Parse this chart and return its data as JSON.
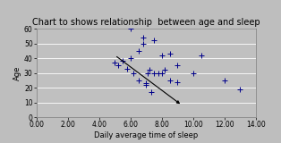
{
  "title": "Chart to shows relationship  between age and sleep",
  "xlabel": "Daily average time of sleep",
  "ylabel": "Age",
  "xlim": [
    0,
    14
  ],
  "ylim": [
    0,
    60
  ],
  "xticks": [
    0,
    2,
    4,
    6,
    8,
    10,
    12,
    14
  ],
  "xtick_labels": [
    "0.00",
    "2.00",
    "4.00",
    "6.00",
    "8.00",
    "10.00",
    "12.00",
    "14.00"
  ],
  "yticks": [
    0,
    10,
    20,
    30,
    40,
    50,
    60
  ],
  "scatter_x": [
    5.0,
    5.2,
    5.5,
    5.8,
    6.0,
    6.0,
    6.2,
    6.5,
    6.8,
    7.0,
    7.0,
    7.1,
    7.2,
    7.3,
    7.5,
    7.8,
    8.0,
    8.0,
    8.2,
    8.5,
    9.0,
    10.0,
    12.0,
    13.0
  ],
  "scatter_y": [
    37,
    35,
    38,
    33,
    40,
    60,
    30,
    25,
    50,
    22,
    23,
    30,
    32,
    17,
    30,
    30,
    42,
    30,
    32,
    25,
    24,
    30,
    25,
    19
  ],
  "extra_scatter_x": [
    6.5,
    6.8,
    7.5,
    8.5,
    9.0,
    10.5
  ],
  "extra_scatter_y": [
    45,
    54,
    52,
    43,
    35,
    42
  ],
  "line_x1": 5.0,
  "line_y1": 42,
  "line_x2": 9.3,
  "line_y2": 8,
  "dot_color": "#00008B",
  "line_color": "#000000",
  "outer_bg": "#BEBEBE",
  "plot_bg": "#C0C0C0",
  "grid_color": "#FFFFFF",
  "border_color": "#888888",
  "title_fontsize": 7,
  "label_fontsize": 6,
  "tick_fontsize": 5.5
}
